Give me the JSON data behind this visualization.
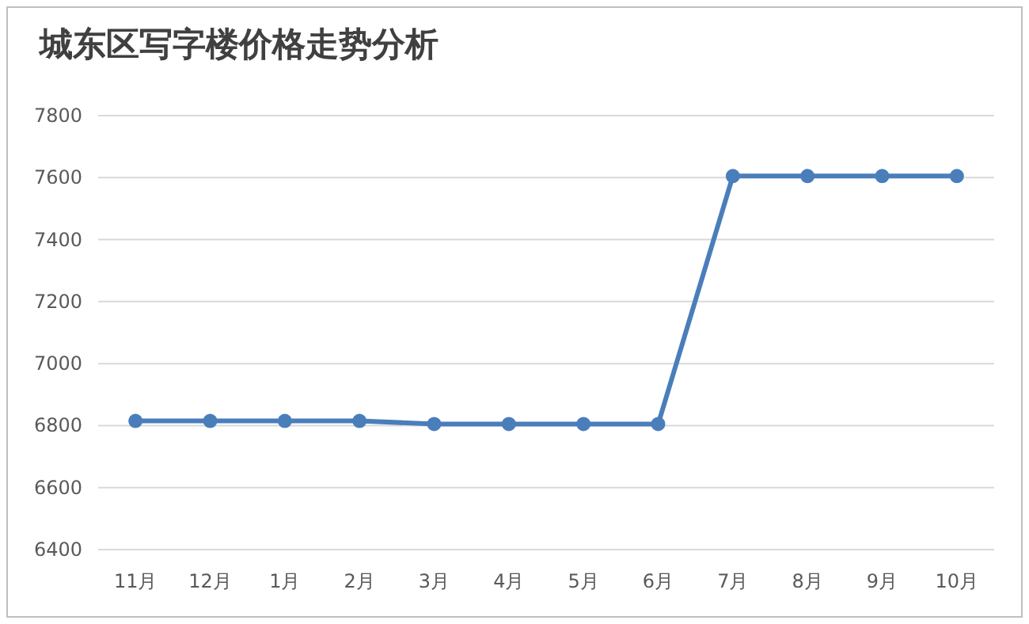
{
  "chart_data": {
    "type": "line",
    "title": "城东区写字楼价格走势分析",
    "categories": [
      "11月",
      "12月",
      "1月",
      "2月",
      "3月",
      "4月",
      "5月",
      "6月",
      "7月",
      "8月",
      "9月",
      "10月"
    ],
    "series": [
      {
        "color": "#4a7ebb",
        "values": [
          6815,
          6815,
          6815,
          6815,
          6805,
          6805,
          6805,
          6805,
          7605,
          7605,
          7605,
          7605
        ]
      }
    ],
    "ylim": [
      6400,
      7800
    ],
    "yticks": [
      6400,
      6600,
      6800,
      7000,
      7200,
      7400,
      7600,
      7800
    ],
    "grid": "y",
    "marker": "circle",
    "line_style": "solid"
  }
}
